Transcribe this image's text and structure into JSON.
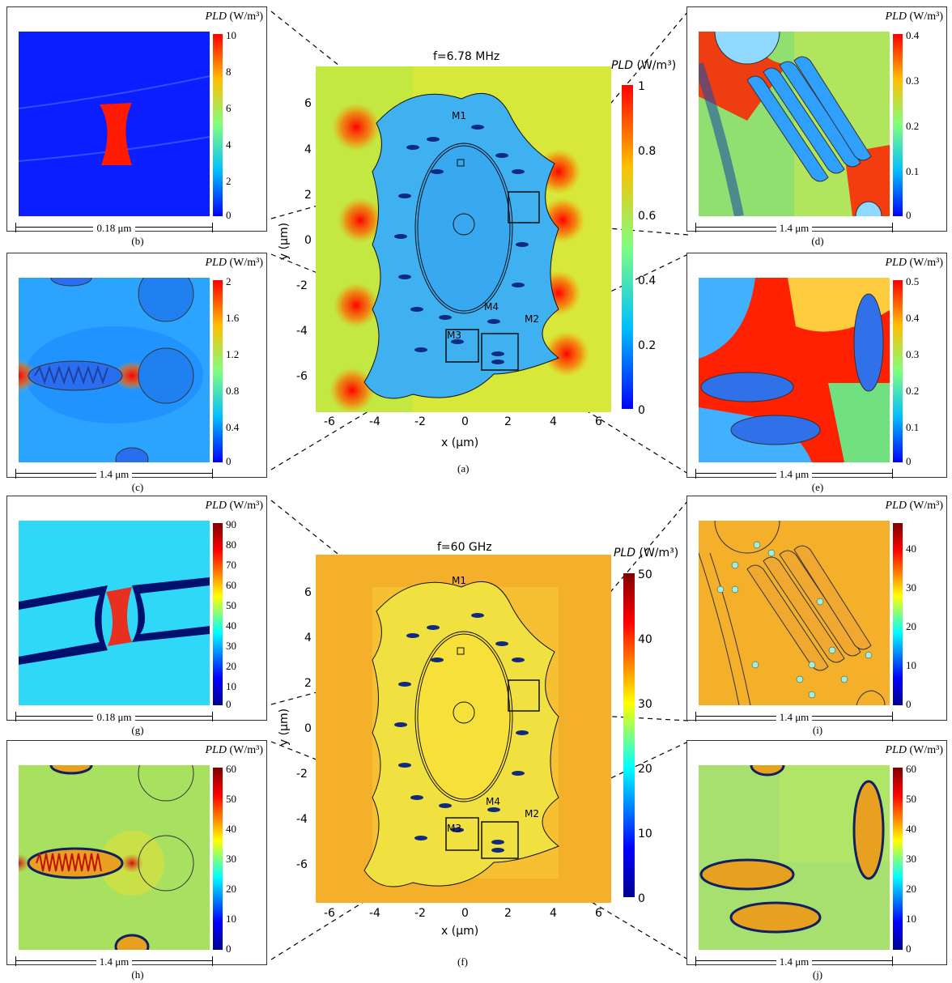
{
  "figure": {
    "top": {
      "title": "f=6.78 MHz",
      "caption": "(a)",
      "colorbar_title": "PLD",
      "colorbar_unit": "(W/m³)",
      "colorbar_ticks": [
        "0",
        "0.2",
        "0.4",
        "0.6",
        "0.8",
        "1"
      ],
      "xlabel": "x (μm)",
      "ylabel": "y (μm)",
      "xticks": [
        "-6",
        "-4",
        "-2",
        "0",
        "2",
        "4",
        "6"
      ],
      "yticks": [
        "6",
        "4",
        "2",
        "0",
        "-2",
        "-4",
        "-6"
      ],
      "labels": {
        "m1": "M1",
        "m2": "M2",
        "m3": "M3",
        "m4": "M4"
      }
    },
    "bottom": {
      "title": "f=60 GHz",
      "caption": "(f)",
      "colorbar_title": "PLD",
      "colorbar_unit": "(W/m³)",
      "colorbar_ticks": [
        "0",
        "10",
        "20",
        "30",
        "40",
        "50"
      ],
      "xlabel": "x (μm)",
      "ylabel": "y (μm)",
      "xticks": [
        "-6",
        "-4",
        "-2",
        "0",
        "2",
        "4",
        "6"
      ],
      "yticks": [
        "6",
        "4",
        "2",
        "0",
        "-2",
        "-4",
        "-6"
      ],
      "labels": {
        "m1": "M1",
        "m2": "M2",
        "m3": "M3",
        "m4": "M4"
      }
    },
    "panels": {
      "b": {
        "caption": "(b)",
        "scale": "0.18 μm",
        "ticks": [
          "10",
          "8",
          "6",
          "4",
          "2",
          "0"
        ],
        "pld": "PLD",
        "unit": "(W/m³)"
      },
      "c": {
        "caption": "(c)",
        "scale": "1.4 μm",
        "ticks": [
          "2",
          "1.6",
          "1.2",
          "0.8",
          "0.4",
          "0"
        ],
        "pld": "PLD",
        "unit": "(W/m³)"
      },
      "d": {
        "caption": "(d)",
        "scale": "1.4 μm",
        "ticks": [
          "0.4",
          "0.3",
          "0.2",
          "0.1",
          "0"
        ],
        "pld": "PLD",
        "unit": "(W/m³)"
      },
      "e": {
        "caption": "(e)",
        "scale": "1.4 μm",
        "ticks": [
          "0.5",
          "0.4",
          "0.3",
          "0.2",
          "0.1",
          "0"
        ],
        "pld": "PLD",
        "unit": "(W/m³)"
      },
      "g": {
        "caption": "(g)",
        "scale": "0.18 μm",
        "ticks": [
          "90",
          "80",
          "70",
          "60",
          "50",
          "40",
          "30",
          "20",
          "10",
          "0"
        ],
        "pld": "PLD",
        "unit": "(W/m³)"
      },
      "h": {
        "caption": "(h)",
        "scale": "1.4 μm",
        "ticks": [
          "60",
          "50",
          "40",
          "30",
          "20",
          "10",
          "0"
        ],
        "pld": "PLD",
        "unit": "(W/m³)"
      },
      "i": {
        "caption": "(i)",
        "scale": "1.4 μm",
        "ticks": [
          "40",
          "30",
          "20",
          "10",
          "0"
        ],
        "pld": "PLD",
        "unit": "(W/m³)"
      },
      "j": {
        "caption": "(j)",
        "scale": "1.4 μm",
        "ticks": [
          "60",
          "50",
          "40",
          "30",
          "20",
          "10",
          "0"
        ],
        "pld": "PLD",
        "unit": "(W/m³)"
      }
    },
    "colors": {
      "jet_low": "#00008f",
      "jet_high": "#b40000",
      "bg_mhz": "#d8e83a",
      "bg_ghz": "#f4b52a"
    }
  }
}
